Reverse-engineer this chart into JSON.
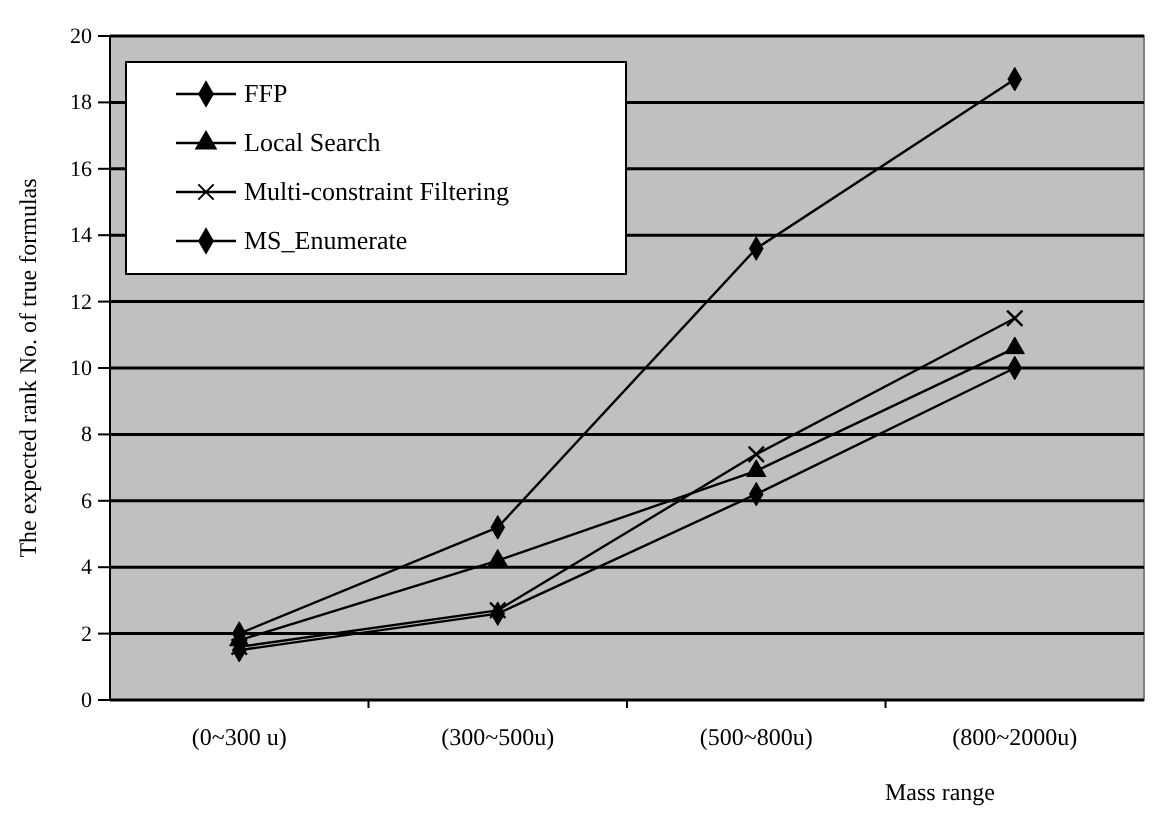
{
  "chart_data": {
    "type": "line",
    "xlabel": "Mass range",
    "ylabel": "The expected rank No. of true formulas",
    "categories": [
      "(0~300 u)",
      "(300~500u)",
      "(500~800u)",
      "(800~2000u)"
    ],
    "series": [
      {
        "name": "FFP",
        "color": "#000000",
        "marker": "diamond",
        "values": [
          1.5,
          2.6,
          6.2,
          10.0
        ]
      },
      {
        "name": "Local Search",
        "color": "#000000",
        "marker": "triangle",
        "values": [
          1.8,
          4.2,
          6.9,
          10.6
        ]
      },
      {
        "name": "Multi-constraint Filtering",
        "color": "#000000",
        "marker": "cross",
        "values": [
          1.6,
          2.7,
          7.4,
          11.5
        ]
      },
      {
        "name": "MS_Enumerate",
        "color": "#000000",
        "marker": "diamond",
        "values": [
          2.0,
          5.2,
          13.6,
          18.7
        ]
      }
    ],
    "ylim": [
      0,
      20
    ],
    "yticks": [
      0,
      2,
      4,
      6,
      8,
      10,
      12,
      14,
      16,
      18,
      20
    ],
    "grid": "y",
    "legend": "top left",
    "line_style": "solid"
  }
}
